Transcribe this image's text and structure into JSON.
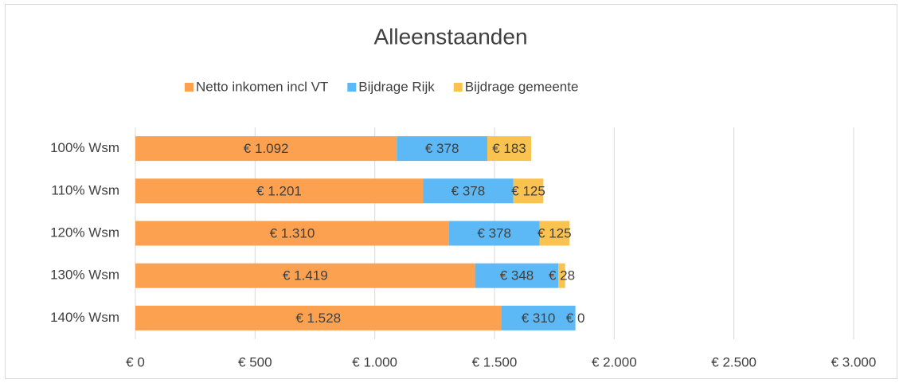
{
  "chart_data": {
    "type": "stacked_barh",
    "title": "Alleenstaanden",
    "categories": [
      "100% Wsm",
      "110% Wsm",
      "120% Wsm",
      "130% Wsm",
      "140% Wsm"
    ],
    "series": [
      {
        "name": "Netto inkomen incl VT",
        "color": "#FBA14F",
        "values": [
          1092,
          1201,
          1310,
          1419,
          1528
        ],
        "value_labels": [
          "€ 1.092",
          "€ 1.201",
          "€ 1.310",
          "€ 1.419",
          "€ 1.528"
        ]
      },
      {
        "name": "Bijdrage Rijk",
        "color": "#5CB9F5",
        "values": [
          378,
          378,
          378,
          348,
          310
        ],
        "value_labels": [
          "€ 378",
          "€ 378",
          "€ 378",
          "€ 348",
          "€ 310"
        ]
      },
      {
        "name": "Bijdrage gemeente",
        "color": "#FAC34F",
        "values": [
          183,
          125,
          125,
          28,
          0
        ],
        "value_labels": [
          "€ 183",
          "€ 125",
          "€ 125",
          "€ 28",
          "€ 0"
        ]
      }
    ],
    "xlim": [
      0,
      3000
    ],
    "xticks": [
      {
        "value": 0,
        "label": "€ 0"
      },
      {
        "value": 500,
        "label": "€ 500"
      },
      {
        "value": 1000,
        "label": "€ 1.000"
      },
      {
        "value": 1500,
        "label": "€ 1.500"
      },
      {
        "value": 2000,
        "label": "€ 2.000"
      },
      {
        "value": 2500,
        "label": "€ 2.500"
      },
      {
        "value": 3000,
        "label": "€ 3.000"
      }
    ],
    "grid": true,
    "legend": "top"
  }
}
